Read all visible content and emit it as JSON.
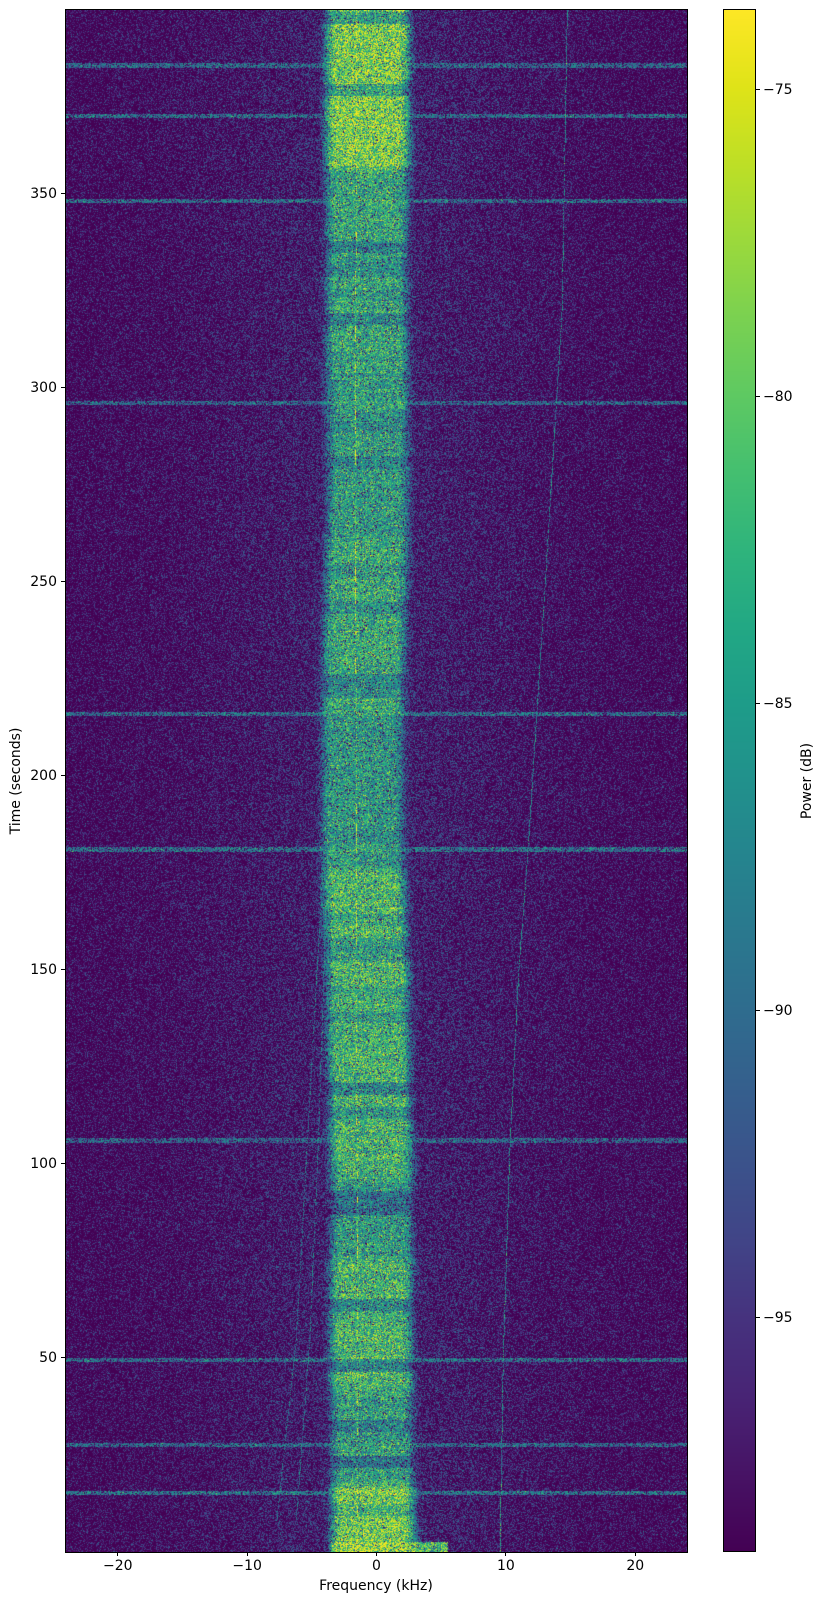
{
  "chart_data": {
    "type": "heatmap",
    "subtype": "spectrogram",
    "title": "",
    "xlabel": "Frequency (kHz)",
    "ylabel": "Time (seconds)",
    "colorbar_label": "Power (dB)",
    "xlim": [
      -24,
      24
    ],
    "ylim": [
      0,
      397.3
    ],
    "clim": [
      -98.8,
      -73.7
    ],
    "x_ticks": [
      {
        "value": -20,
        "label": "−20"
      },
      {
        "value": -10,
        "label": "−10"
      },
      {
        "value": 0,
        "label": "0"
      },
      {
        "value": 10,
        "label": "10"
      },
      {
        "value": 20,
        "label": "20"
      }
    ],
    "y_ticks": [
      {
        "value": 50,
        "label": "50"
      },
      {
        "value": 100,
        "label": "100"
      },
      {
        "value": 150,
        "label": "150"
      },
      {
        "value": 200,
        "label": "200"
      },
      {
        "value": 250,
        "label": "250"
      },
      {
        "value": 300,
        "label": "300"
      },
      {
        "value": 350,
        "label": "350"
      }
    ],
    "colorbar_ticks": [
      {
        "value": -75,
        "label": "−75"
      },
      {
        "value": -80,
        "label": "−80"
      },
      {
        "value": -85,
        "label": "−85"
      },
      {
        "value": -90,
        "label": "−90"
      },
      {
        "value": -95,
        "label": "−95"
      }
    ],
    "grid": false,
    "colormap": {
      "name": "viridis",
      "stops": [
        [
          68,
          1,
          84
        ],
        [
          71,
          19,
          101
        ],
        [
          72,
          36,
          117
        ],
        [
          70,
          50,
          126
        ],
        [
          65,
          68,
          135
        ],
        [
          59,
          82,
          139
        ],
        [
          53,
          95,
          141
        ],
        [
          47,
          108,
          142
        ],
        [
          42,
          120,
          142
        ],
        [
          37,
          132,
          142
        ],
        [
          33,
          145,
          140
        ],
        [
          30,
          156,
          137
        ],
        [
          34,
          168,
          132
        ],
        [
          47,
          180,
          124
        ],
        [
          68,
          191,
          112
        ],
        [
          94,
          201,
          98
        ],
        [
          122,
          209,
          81
        ],
        [
          155,
          217,
          60
        ],
        [
          189,
          223,
          38
        ],
        [
          223,
          227,
          24
        ],
        [
          253,
          231,
          37
        ]
      ]
    },
    "spectrogram_model": {
      "seed": 1337,
      "noise_floor_db": {
        "edge": -98.4,
        "center_boost": 2.9,
        "gauss_width_khz": 13.5
      },
      "main_band": {
        "half_width_khz": 2.35,
        "edge_rolloff_db_per_khz2": 12,
        "center_path": [
          [
            0,
            -0.25
          ],
          [
            30,
            -0.35
          ],
          [
            60,
            -0.45
          ],
          [
            90,
            -0.35
          ],
          [
            120,
            -0.55
          ],
          [
            150,
            -0.7
          ],
          [
            180,
            -1.05
          ],
          [
            210,
            -1.1
          ],
          [
            240,
            -0.9
          ],
          [
            270,
            -0.65
          ],
          [
            300,
            -0.7
          ],
          [
            330,
            -0.75
          ],
          [
            360,
            -0.7
          ],
          [
            397.3,
            -0.65
          ]
        ],
        "segments": [
          [
            0,
            16,
            -78
          ],
          [
            16,
            40,
            -83
          ],
          [
            40,
            75,
            -80.5
          ],
          [
            75,
            95,
            -83.5
          ],
          [
            95,
            140,
            -81
          ],
          [
            140,
            175,
            -80.5
          ],
          [
            175,
            215,
            -84
          ],
          [
            215,
            260,
            -82
          ],
          [
            260,
            300,
            -83.5
          ],
          [
            300,
            355,
            -82.5
          ],
          [
            355,
            397.4,
            -77.5
          ]
        ],
        "pause_fraction": 0.32,
        "pause_depth_db": 5.5,
        "pause_block_s": 3.1
      },
      "carrier": {
        "path": [
          [
            0,
            -1.45
          ],
          [
            100,
            -1.5
          ],
          [
            200,
            -1.58
          ],
          [
            300,
            -1.6
          ],
          [
            397.3,
            -1.55
          ]
        ],
        "base_db": -86,
        "dot_db": -75,
        "dot_block_s": 2.0,
        "dot_duty": 0.26
      },
      "drift_lines": [
        {
          "path": [
            [
              0,
              9.55
            ],
            [
              50,
              9.8
            ],
            [
              103,
              10.3
            ],
            [
              150,
              11.0
            ],
            [
              180,
              11.7
            ],
            [
              250,
              13.05
            ],
            [
              320,
              14.35
            ],
            [
              397.3,
              14.75
            ]
          ],
          "level_db": -87.5,
          "bright_end_t": 18,
          "bright_db": -83
        },
        {
          "path": [
            [
              8,
              -7.7
            ],
            [
              55,
              -6.2
            ],
            [
              105,
              -5.35
            ],
            [
              150,
              -4.6
            ],
            [
              188,
              -3.9
            ]
          ],
          "level_db": -90.5
        },
        {
          "path": [
            [
              8,
              -6.2
            ],
            [
              55,
              -5.15
            ],
            [
              105,
              -4.5
            ],
            [
              150,
              -4.05
            ],
            [
              212,
              -3.5
            ]
          ],
          "level_db": -90
        }
      ],
      "wideband_bursts": [
        [
          383,
          -90
        ],
        [
          370,
          -89.5
        ],
        [
          348,
          -89.5
        ],
        [
          296,
          -90.5
        ],
        [
          216,
          -89.5
        ],
        [
          181,
          -89
        ],
        [
          106,
          -90.5
        ],
        [
          49.5,
          -89.5
        ],
        [
          27.5,
          -90
        ],
        [
          15.2,
          -88.5
        ]
      ],
      "bottom_streak": {
        "t_max": 2.6,
        "f_min": -3.5,
        "f_max": 5.5,
        "level_db": -80
      }
    }
  }
}
